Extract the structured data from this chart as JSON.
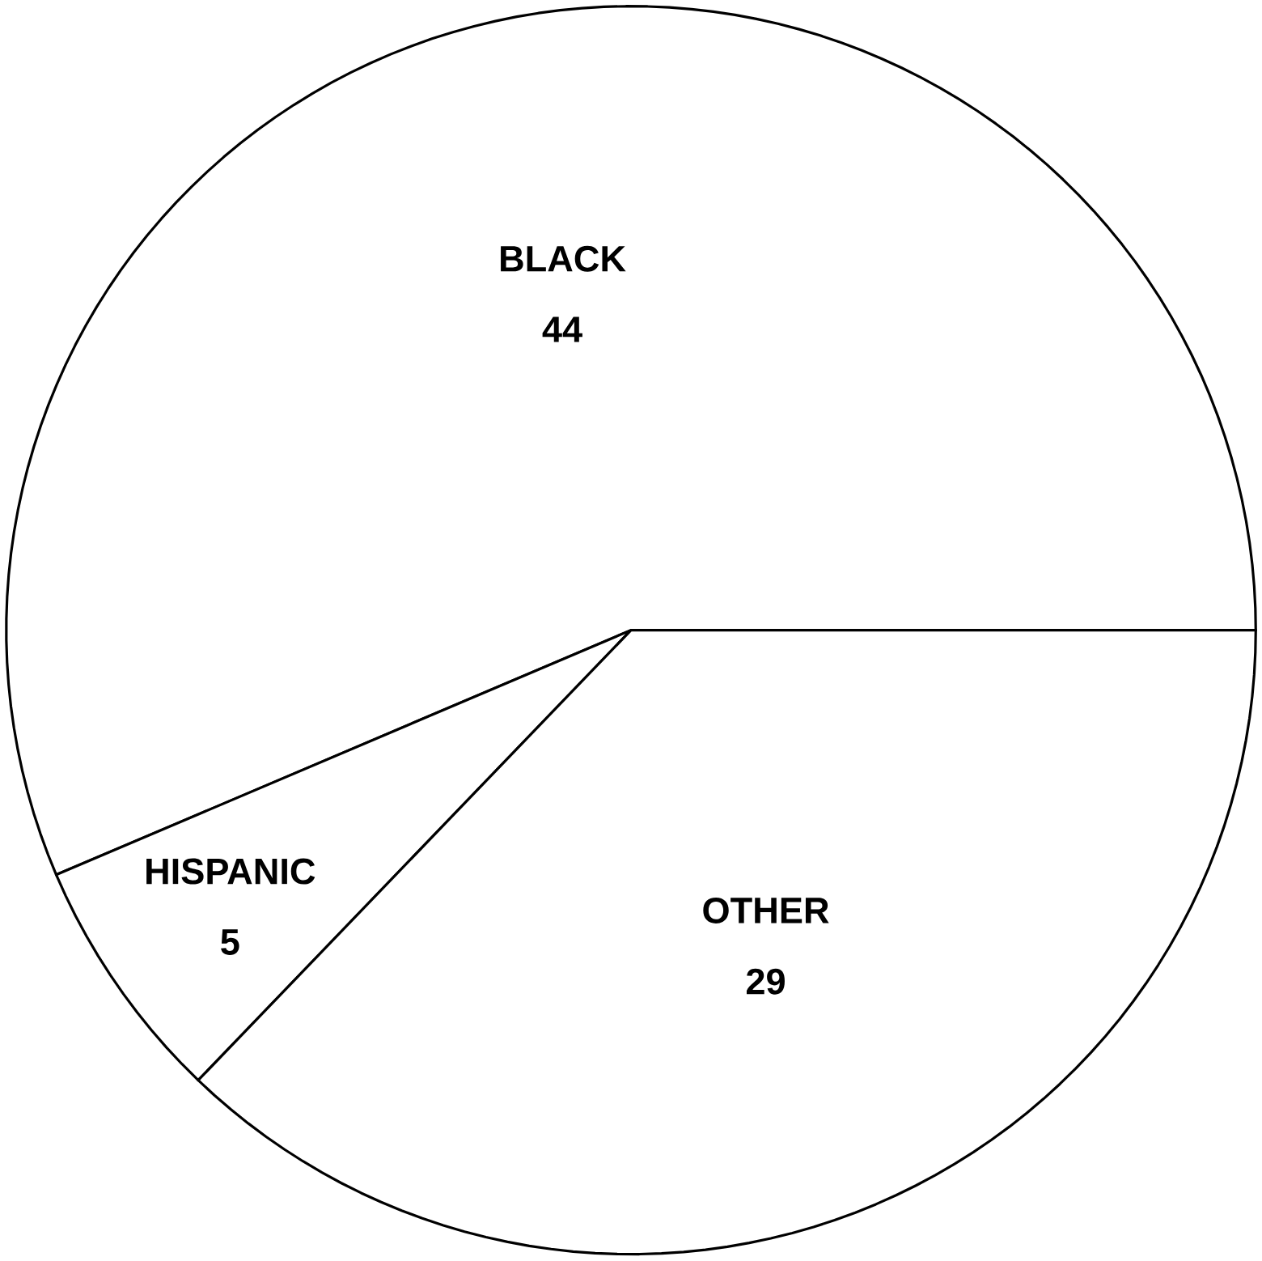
{
  "chart_data": {
    "type": "pie",
    "categories": [
      "BLACK",
      "HISPANIC",
      "OTHER"
    ],
    "values": [
      44,
      5,
      29
    ],
    "colors": [
      "#ffffff",
      "#ffffff",
      "#ffffff"
    ],
    "data_labels": true
  }
}
